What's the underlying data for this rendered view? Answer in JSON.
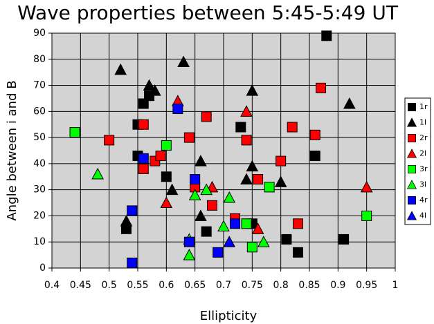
{
  "chart_data": {
    "type": "scatter",
    "title": "Wave properties between 5:45-5:49 UT",
    "x_label": "Ellipticity",
    "y_label": "Angle between i and B",
    "xlim": [
      0.4,
      1
    ],
    "xticks": [
      0.4,
      0.45,
      0.5,
      0.55,
      0.6,
      0.65,
      0.7,
      0.75,
      0.8,
      0.85,
      0.9,
      0.95,
      1
    ],
    "ylim": [
      0,
      90
    ],
    "yticks": [
      0,
      10,
      20,
      30,
      40,
      50,
      60,
      70,
      80,
      90
    ],
    "grid": true,
    "legend": "right",
    "series": [
      {
        "name": "1r",
        "color": "#000000",
        "marker": "square",
        "x": [
          0.88,
          0.55,
          0.56,
          0.57,
          0.6,
          0.55,
          0.53,
          0.67,
          0.73,
          0.75,
          0.81,
          0.83,
          0.86,
          0.91
        ],
        "values": [
          89,
          55,
          63,
          66,
          35,
          43,
          15,
          14,
          54,
          17,
          11,
          6,
          43,
          11
        ]
      },
      {
        "name": "1l",
        "color": "#000000",
        "marker": "triangle",
        "x": [
          0.52,
          0.63,
          0.57,
          0.58,
          0.75,
          0.92,
          0.66,
          0.75,
          0.74,
          0.8,
          0.61,
          0.66,
          0.53
        ],
        "values": [
          76,
          79,
          70,
          68,
          68,
          63,
          41,
          39,
          34,
          33,
          30,
          20,
          18
        ]
      },
      {
        "name": "2r",
        "color": "#ff0000",
        "marker": "square",
        "x": [
          0.5,
          0.56,
          0.56,
          0.58,
          0.59,
          0.64,
          0.67,
          0.65,
          0.68,
          0.72,
          0.74,
          0.76,
          0.8,
          0.82,
          0.86,
          0.87,
          0.83
        ],
        "values": [
          49,
          55,
          38,
          41,
          43,
          50,
          58,
          31,
          24,
          19,
          49,
          34,
          41,
          54,
          51,
          69,
          17
        ]
      },
      {
        "name": "2l",
        "color": "#ff0000",
        "marker": "triangle",
        "x": [
          0.62,
          0.74,
          0.6,
          0.68,
          0.76,
          0.95
        ],
        "values": [
          64,
          60,
          25,
          31,
          15,
          31
        ]
      },
      {
        "name": "3r",
        "color": "#00ff00",
        "marker": "square",
        "x": [
          0.44,
          0.6,
          0.78,
          0.75,
          0.74,
          0.95
        ],
        "values": [
          52,
          47,
          31,
          8,
          17,
          20
        ]
      },
      {
        "name": "3l",
        "color": "#00ff00",
        "marker": "triangle",
        "x": [
          0.48,
          0.65,
          0.67,
          0.71,
          0.7,
          0.64,
          0.64,
          0.77
        ],
        "values": [
          36,
          28,
          30,
          27,
          16,
          11,
          5,
          10
        ]
      },
      {
        "name": "4r",
        "color": "#0000ff",
        "marker": "square",
        "x": [
          0.54,
          0.54,
          0.56,
          0.62,
          0.65,
          0.64,
          0.69,
          0.72
        ],
        "values": [
          22,
          2,
          42,
          61,
          34,
          10,
          6,
          17
        ]
      },
      {
        "name": "4l",
        "color": "#0000ff",
        "marker": "triangle",
        "x": [
          0.71
        ],
        "values": [
          10
        ]
      }
    ]
  }
}
